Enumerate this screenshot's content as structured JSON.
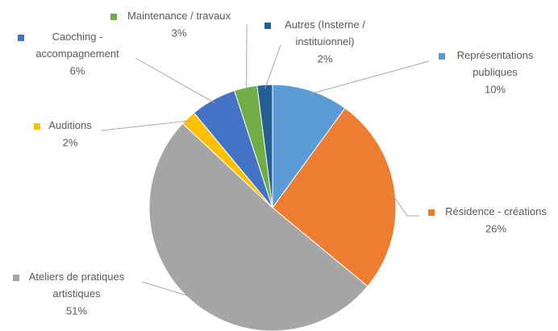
{
  "chart_data": {
    "type": "pie",
    "categories": [
      "Représentations publiques",
      "Résidence - créations",
      "Ateliers de pratiques artistiques",
      "Auditions",
      "Caoching - accompagnement",
      "Maintenance / travaux",
      "Autres (Insterne / instituionnel)"
    ],
    "values": [
      10,
      26,
      51,
      2,
      6,
      3,
      2
    ],
    "value_labels": [
      "10%",
      "26%",
      "51%",
      "2%",
      "6%",
      "3%",
      "2%"
    ],
    "colors": [
      "#5b9bd5",
      "#ed7d31",
      "#a5a5a5",
      "#ffc000",
      "#4472c4",
      "#70ad47",
      "#255e91"
    ]
  }
}
